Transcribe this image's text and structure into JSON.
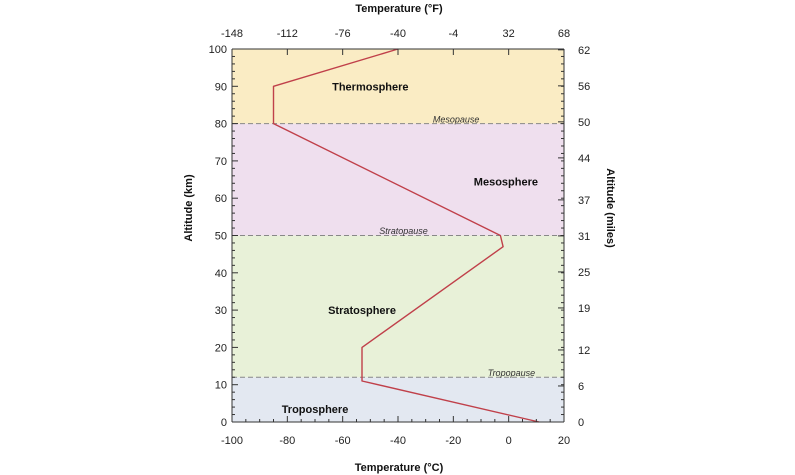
{
  "chart_data": {
    "type": "line",
    "title": "",
    "xlabel_bottom": "Temperature (°C)",
    "xlabel_top": "Temperature (°F)",
    "ylabel_left": "Altitude (km)",
    "ylabel_right": "Altitude (miles)",
    "xlim": [
      -100,
      20
    ],
    "ylim": [
      0,
      100
    ],
    "x_ticks_bottom": [
      -100,
      -80,
      -60,
      -40,
      -20,
      0,
      20
    ],
    "x_ticks_top": [
      -148,
      -112,
      -76,
      -40,
      -4,
      32,
      68
    ],
    "y_ticks_left": [
      0,
      10,
      20,
      30,
      40,
      50,
      60,
      70,
      80,
      90,
      100
    ],
    "y_ticks_right_km": [
      0,
      9.66,
      19.31,
      30.58,
      40.23,
      49.89,
      59.55,
      70.81,
      80.47,
      90.12,
      99.78
    ],
    "y_ticks_right_labels": [
      "0",
      "6",
      "12",
      "19",
      "25",
      "31",
      "37",
      "44",
      "50",
      "56",
      "62"
    ],
    "series": [
      {
        "x": [
          11,
          -53,
          -53,
          -2,
          -3,
          -85,
          -85,
          -40
        ],
        "y": [
          0,
          11,
          20,
          47,
          50,
          80,
          90,
          100
        ]
      }
    ],
    "layers": [
      {
        "label": "Troposphere",
        "from": 0,
        "to": 12,
        "color": "#e3e8f1",
        "label_x": -70,
        "label_y": 3.5
      },
      {
        "label": "Stratosphere",
        "from": 12,
        "to": 50,
        "color": "#e8f1d8",
        "label_x": -53,
        "label_y": 30
      },
      {
        "label": "Mesosphere",
        "from": 50,
        "to": 80,
        "color": "#efdfee",
        "label_x": -1,
        "label_y": 64.5
      },
      {
        "label": "Thermosphere",
        "from": 80,
        "to": 100,
        "color": "#faecc4",
        "label_x": -50,
        "label_y": 90
      }
    ],
    "boundaries": [
      {
        "label": "Tropopause",
        "at": 12,
        "label_x": 1,
        "label_y": 11.8
      },
      {
        "label": "Stratopause",
        "at": 50,
        "label_x": -38,
        "label_y": 49.8
      },
      {
        "label": "Mesopause",
        "at": 80,
        "label_x": -19,
        "label_y": 79.8
      }
    ],
    "colors": {
      "line": "#c0404a",
      "dash": "#888888",
      "axis": "#333333"
    },
    "grid": false,
    "legend": "none"
  }
}
